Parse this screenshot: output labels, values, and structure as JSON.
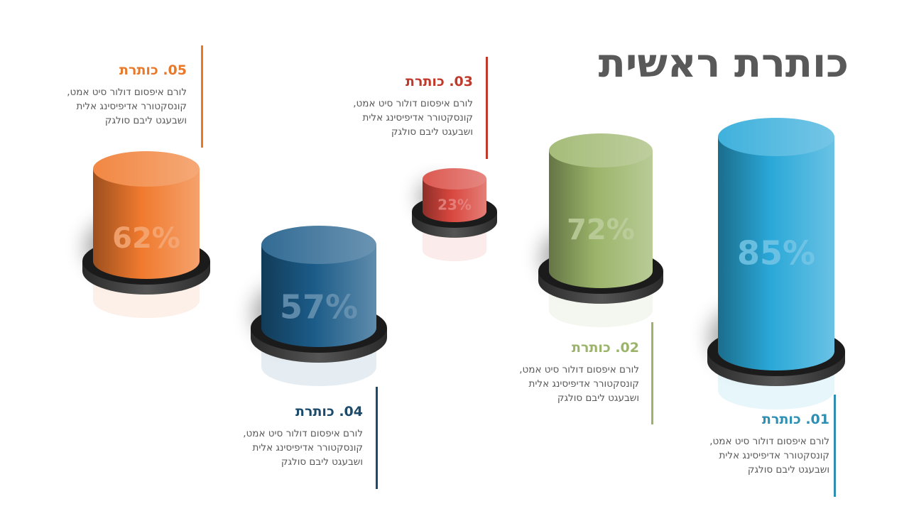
{
  "title": "כותרת ראשית",
  "items": [
    {
      "label": "01. כותרת",
      "lines": [
        "לורם איפסום דולור סיט אמט,",
        "קונסקטורר אדיפיסינג אלית",
        "ושבעגט ליבם סולגק"
      ],
      "value": "85%",
      "pct": 85,
      "color": "#2AA8D8",
      "text_color": "#2C8FB3"
    },
    {
      "label": "02. כותרת",
      "lines": [
        "לורם איפסום דולור סיט אמט,",
        "קונסקטורר אדיפיסינג אלית",
        "ושבעגט ליבם סולגק"
      ],
      "value": "72%",
      "pct": 72,
      "color": "#9BB46A",
      "text_color": "#9BB46A"
    },
    {
      "label": "03. כותרת",
      "lines": [
        "לורם איפסום דולור סיט אמט,",
        "קונסקטורר אדיפיסינג אלית",
        "ושבעגט ליבם סולגק"
      ],
      "value": "23%",
      "pct": 23,
      "color": "#D8473E",
      "text_color": "#C0392B"
    },
    {
      "label": "04. כותרת",
      "lines": [
        "לורם איפסום דולור סיט אמט,",
        "קונסקטורר אדיפיסינג אלית",
        "ושבעגט ליבם סולגק"
      ],
      "value": "57%",
      "pct": 57,
      "color": "#1B5B88",
      "text_color": "#1B4A6B"
    },
    {
      "label": "05. כותרת",
      "lines": [
        "לורם איפסום דולור סיט אמט,",
        "קונסקטורר אדיפיסינג אלית",
        "ושבעגט ליבם סולגק"
      ],
      "value": "62%",
      "pct": 62,
      "color": "#F07A2E",
      "text_color": "#E8792A"
    }
  ]
}
